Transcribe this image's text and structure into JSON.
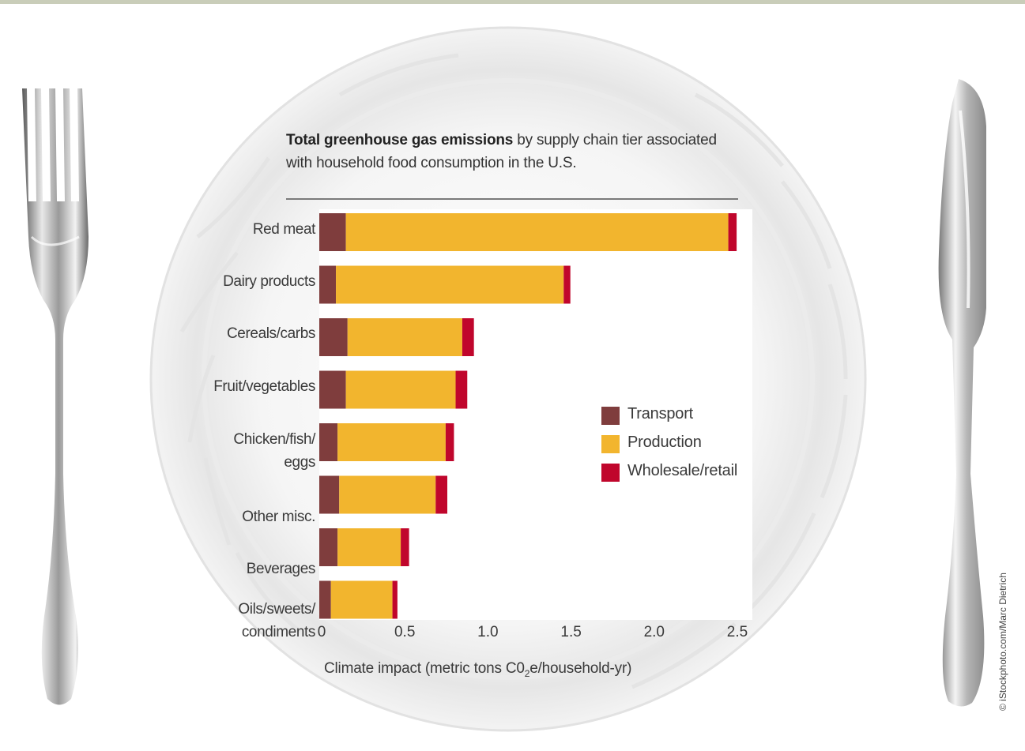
{
  "colors": {
    "transport": "#7f3d3d",
    "production": "#f2b52e",
    "wholesale": "#c0062c",
    "text": "#3a3a3a"
  },
  "credit": "© iStockphoto.com/Marc Dietrich",
  "chart_data": {
    "type": "bar",
    "orientation": "horizontal",
    "stacked": true,
    "title_bold": "Total greenhouse gas emissions",
    "title_rest": " by supply chain tier associated with household food consumption in the U.S.",
    "xlabel_pre": "Climate impact (metric tons C0",
    "xlabel_sub": "2",
    "xlabel_post": "e/household-yr)",
    "xlim": [
      0,
      2.5
    ],
    "xticks": [
      "0",
      "0.5",
      "1.0",
      "1.5",
      "2.0",
      "2.5"
    ],
    "xtick_values": [
      0,
      0.5,
      1.0,
      1.5,
      2.0,
      2.5
    ],
    "legend_position": "right",
    "categories": [
      {
        "label_lines": [
          "Red meat"
        ]
      },
      {
        "label_lines": [
          "Dairy products"
        ]
      },
      {
        "label_lines": [
          "Cereals/carbs"
        ]
      },
      {
        "label_lines": [
          "Fruit/vegetables"
        ]
      },
      {
        "label_lines": [
          "Chicken/fish/",
          "eggs"
        ]
      },
      {
        "label_lines": [
          "Other misc."
        ]
      },
      {
        "label_lines": [
          "Beverages"
        ]
      },
      {
        "label_lines": [
          "Oils/sweets/",
          "condiments"
        ]
      }
    ],
    "series": [
      {
        "name": "Transport",
        "color": "#7f3d3d",
        "values": [
          0.16,
          0.1,
          0.17,
          0.16,
          0.11,
          0.12,
          0.11,
          0.07
        ]
      },
      {
        "name": "Production",
        "color": "#f2b52e",
        "values": [
          2.3,
          1.37,
          0.69,
          0.66,
          0.65,
          0.58,
          0.38,
          0.37
        ]
      },
      {
        "name": "Wholesale/retail",
        "color": "#c0062c",
        "values": [
          0.05,
          0.04,
          0.07,
          0.07,
          0.05,
          0.07,
          0.05,
          0.03
        ]
      }
    ]
  }
}
